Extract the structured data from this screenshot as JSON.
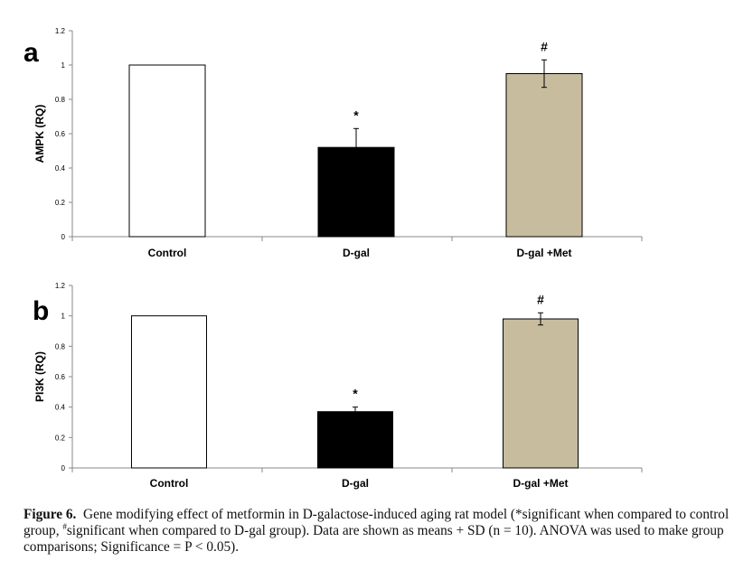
{
  "chart_data": [
    {
      "type": "bar",
      "panel_label": "a",
      "ylabel": "AMPK (RQ)",
      "categories": [
        "Control",
        "D-gal",
        "D-gal +Met"
      ],
      "values": [
        1.0,
        0.52,
        0.95
      ],
      "errors": [
        null,
        0.11,
        0.08
      ],
      "annotations": [
        "",
        "*",
        "#"
      ],
      "ylim": [
        0,
        1.2
      ],
      "yticks": [
        "0",
        "0.2",
        "0.4",
        "0.6",
        "0.8",
        "1",
        "1.2"
      ],
      "grid": false,
      "legend": "none"
    },
    {
      "type": "bar",
      "panel_label": "b",
      "ylabel": "PI3K (RQ)",
      "categories": [
        "Control",
        "D-gal",
        "D-gal +Met"
      ],
      "values": [
        1.0,
        0.37,
        0.98
      ],
      "errors": [
        null,
        0.03,
        0.04
      ],
      "annotations": [
        "",
        "*",
        "#"
      ],
      "ylim": [
        0,
        1.2
      ],
      "yticks": [
        "0",
        "0.2",
        "0.4",
        "0.6",
        "0.8",
        "1",
        "1.2"
      ],
      "grid": false,
      "legend": "none"
    }
  ],
  "colors": {
    "control_fill": "#ffffff",
    "dgal_fill": "#000000",
    "dgal_met_fill": "#c7bd9e",
    "axis": "#888888"
  },
  "caption": {
    "label": "Figure 6.",
    "part1": "Gene modifying effect of metformin in D-galactose-induced aging rat model (*significant when compared to control group, ",
    "hash": "#",
    "part2": "significant when compared to D-gal group). Data are shown as means + SD (n = 10). ANOVA was used to make group comparisons; Significance = P < 0.05)."
  }
}
